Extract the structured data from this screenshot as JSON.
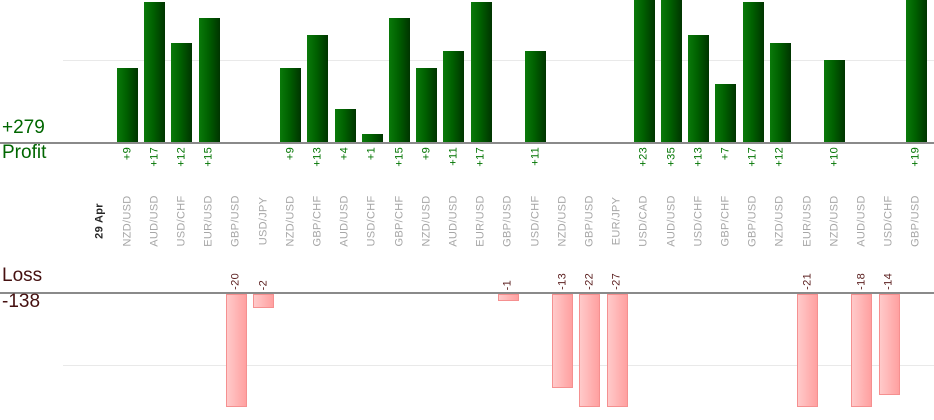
{
  "chart_data": {
    "type": "bar",
    "date_label": "29 Apr",
    "profit_axis_label": "Profit",
    "profit_total": "+279",
    "loss_axis_label": "Loss",
    "loss_total": "-138",
    "categories": [
      "NZD/USD",
      "AUD/USD",
      "USD/CHF",
      "EUR/USD",
      "GBP/USD",
      "USD/JPY",
      "NZD/USD",
      "GBP/CHF",
      "AUD/USD",
      "USD/CHF",
      "GBP/CHF",
      "NZD/USD",
      "AUD/USD",
      "EUR/USD",
      "GBP/USD",
      "USD/CHF",
      "NZD/USD",
      "GBP/USD",
      "EUR/JPY",
      "USD/CAD",
      "AUD/USD",
      "USD/CHF",
      "GBP/CHF",
      "GBP/USD",
      "NZD/USD",
      "EUR/USD",
      "NZD/USD",
      "AUD/USD",
      "USD/CHF",
      "GBP/USD"
    ],
    "values": [
      9,
      17,
      12,
      15,
      -20,
      -2,
      9,
      13,
      4,
      1,
      15,
      9,
      11,
      17,
      -1,
      11,
      -13,
      -22,
      -27,
      23,
      35,
      13,
      7,
      17,
      12,
      -21,
      10,
      -18,
      -14,
      19
    ],
    "gridline_values": {
      "profit": 10,
      "loss": -10
    },
    "ylim_visible": {
      "profit": [
        0,
        17
      ],
      "loss": [
        -16,
        0
      ]
    },
    "grid": "on",
    "colors": {
      "profit_bar_left": "#0a7a0a",
      "profit_bar_mid": "#006000",
      "profit_bar_right": "#003400",
      "profit_text": "#007400",
      "profit_summary_text": "#006600",
      "loss_bar_left": "#ffcaca",
      "loss_bar_right": "#ffa0a0",
      "loss_bar_border": "#f59090",
      "loss_text": "#5a1e1e",
      "loss_summary_text": "#451010",
      "category_text": "#a6a6a6",
      "date_text": "#262626",
      "axis_line": "#8a8a8a",
      "gridline": "#e9e9e9"
    }
  }
}
